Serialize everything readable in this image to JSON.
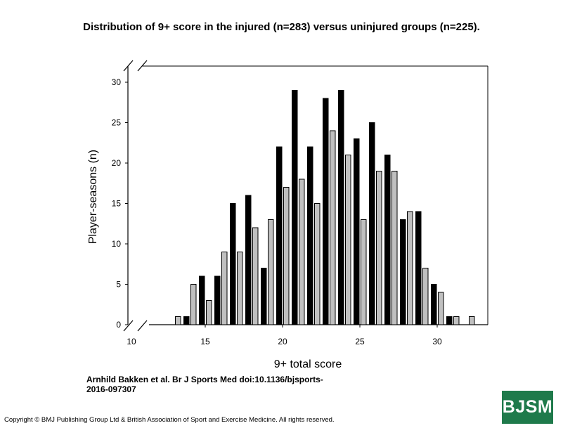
{
  "title": "Distribution of 9+ score in the injured (n=283) versus uninjured groups (n=225).",
  "citation_line1": "Arnhild Bakken et al. Br J Sports Med doi:10.1136/bjsports-",
  "citation_line2": "2016-097307",
  "copyright": "Copyright © BMJ Publishing Group Ltd & British Association of Sport and Exercise Medicine. All rights reserved.",
  "logo_text": "BJSM",
  "colors": {
    "injured": "#000000",
    "uninjured": "#c0c0c0",
    "logo": "#1f7a4b"
  },
  "chart_data": {
    "type": "bar",
    "xlabel": "9+ total score",
    "ylabel": "Player-seasons (n)",
    "xlim": [
      10,
      32.5
    ],
    "ylim": [
      0,
      30
    ],
    "xticks": [
      10,
      15,
      20,
      25,
      30
    ],
    "yticks": [
      0,
      5,
      10,
      15,
      20,
      25,
      30
    ],
    "grid": false,
    "axis_break": true,
    "x": [
      13,
      14,
      15,
      16,
      17,
      18,
      19,
      20,
      21,
      22,
      23,
      24,
      25,
      26,
      27,
      28,
      29,
      30,
      31,
      32
    ],
    "series": [
      {
        "values": [
          0,
          1,
          6,
          6,
          15,
          16,
          7,
          22,
          29,
          22,
          28,
          29,
          23,
          25,
          21,
          13,
          14,
          5,
          1,
          0
        ]
      },
      {
        "values": [
          1,
          5,
          3,
          9,
          9,
          12,
          13,
          17,
          18,
          15,
          24,
          21,
          13,
          19,
          19,
          14,
          7,
          4,
          1,
          1
        ]
      }
    ]
  }
}
